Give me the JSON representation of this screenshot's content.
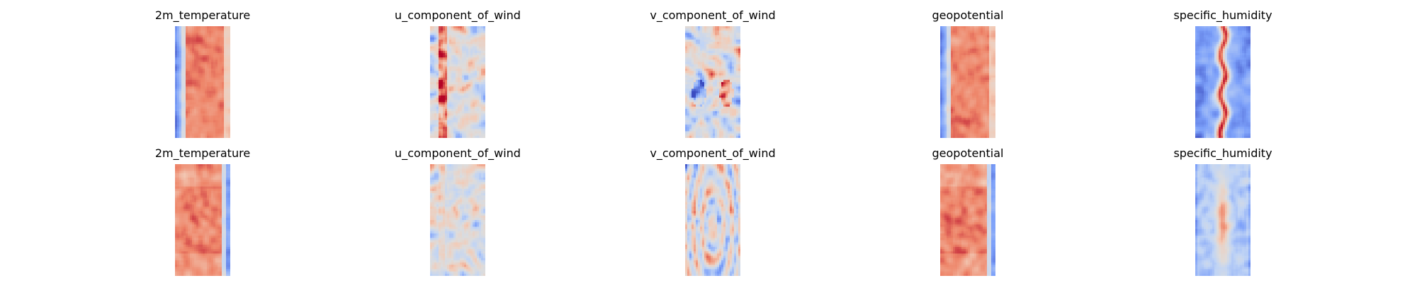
{
  "chart_data": {
    "type": "heatmap",
    "colormap": "coolwarm",
    "colormap_stops": [
      "#3b4cc0",
      "#7b9ff9",
      "#c0d4f5",
      "#dddcdc",
      "#f2cbb7",
      "#ee8468",
      "#b40426"
    ],
    "axes_visible": false,
    "grid": false,
    "layout": {
      "rows": 2,
      "cols": 5
    },
    "panels": [
      {
        "row": 0,
        "col": 0,
        "title": "2m_temperature",
        "pattern": "band_right_warm"
      },
      {
        "row": 0,
        "col": 1,
        "title": "u_component_of_wind",
        "pattern": "noise_neutral_streak"
      },
      {
        "row": 0,
        "col": 2,
        "title": "v_component_of_wind",
        "pattern": "noise_dipoles"
      },
      {
        "row": 0,
        "col": 3,
        "title": "geopotential",
        "pattern": "band_right_warm"
      },
      {
        "row": 0,
        "col": 4,
        "title": "specific_humidity",
        "pattern": "cold_center_warm_streak"
      },
      {
        "row": 1,
        "col": 0,
        "title": "2m_temperature",
        "pattern": "band_left_warm"
      },
      {
        "row": 1,
        "col": 1,
        "title": "u_component_of_wind",
        "pattern": "noise_neutral"
      },
      {
        "row": 1,
        "col": 2,
        "title": "v_component_of_wind",
        "pattern": "noise_rings"
      },
      {
        "row": 1,
        "col": 3,
        "title": "geopotential",
        "pattern": "band_left_warm"
      },
      {
        "row": 1,
        "col": 4,
        "title": "specific_humidity",
        "pattern": "cold_soft_center"
      }
    ]
  }
}
